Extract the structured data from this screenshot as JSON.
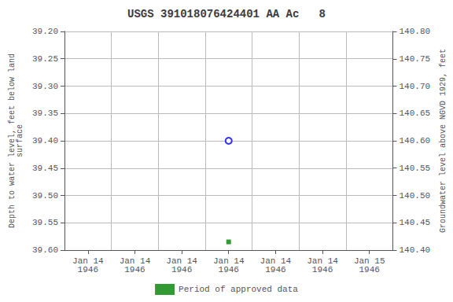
{
  "chart_data": {
    "type": "scatter",
    "title": "USGS 391018076424401 AA Ac   8",
    "y_label": "Depth to water level, feet below land\nsurface",
    "y2_label": "Groundwater level above NGVD 1929, feet",
    "categories": [
      "Jan 14\n1946",
      "Jan 14\n1946",
      "Jan 14\n1946",
      "Jan 14\n1946",
      "Jan 14\n1946",
      "Jan 14\n1946",
      "Jan 15\n1946"
    ],
    "series": [
      {
        "color": "#0000ff",
        "marker": "circle_open",
        "values": [
          null,
          null,
          null,
          39.4,
          null,
          null,
          null
        ]
      },
      {
        "name": "Period of approved data",
        "color": "#008000",
        "marker": "square",
        "values": [
          null,
          null,
          null,
          39.585,
          null,
          null,
          null
        ]
      }
    ],
    "ylim": [
      39.6,
      39.2
    ],
    "yticks": [
      {
        "value": 39.2,
        "label": "39.20"
      },
      39.25,
      {
        "value": 39.3,
        "label": "39.30"
      },
      39.35,
      {
        "value": 39.4,
        "label": "39.40"
      },
      39.45,
      {
        "value": 39.5,
        "label": "39.50"
      },
      39.55,
      {
        "value": 39.6,
        "label": "39.60"
      }
    ],
    "y2lim": [
      140.4,
      140.8
    ],
    "y2ticks": [
      {
        "value": 140.4,
        "label": "140.40"
      },
      140.45,
      {
        "value": 140.5,
        "label": "140.50"
      },
      140.55,
      {
        "value": 140.6,
        "label": "140.60"
      },
      140.65,
      {
        "value": 140.7,
        "label": "140.70"
      },
      140.75,
      {
        "value": 140.8,
        "label": "140.80"
      }
    ],
    "grid": true,
    "legend": "bottom"
  }
}
